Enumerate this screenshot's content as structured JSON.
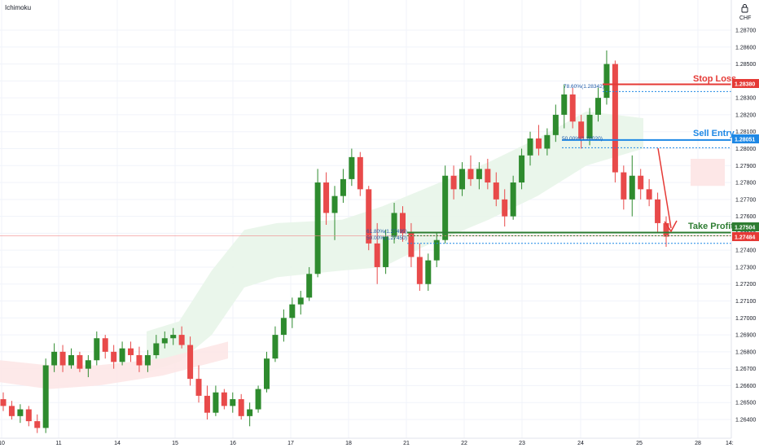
{
  "indicator": "Ichimoku",
  "currency_label": "CHF",
  "lock_icon": "lock-icon",
  "corner_label": "14:",
  "colors": {
    "bull": "#2e8b2e",
    "bear": "#e84a4a",
    "stop": "#e53935",
    "entry": "#1e88e5",
    "profit": "#2e7d32",
    "cloud_bull": "#e8f5e9",
    "cloud_bear": "#fde7e7",
    "price_line": "#f28b8b"
  },
  "annotations": {
    "stop_loss": "Stop Loss",
    "sell_entry": "Sell Entry",
    "take_profit": "Take Profit"
  },
  "levels": {
    "stop_loss": {
      "price": 1.2838,
      "tag": "1.28380"
    },
    "sell_entry": {
      "price": 1.28051,
      "tag": "1.28051"
    },
    "take_profit": {
      "price": 1.27504,
      "tag": "1.27504"
    },
    "current": {
      "price": 1.27484,
      "tag": "1.27484"
    }
  },
  "fib_labels": [
    {
      "text": "78.60%(1.28342)",
      "price": 1.28342
    },
    {
      "text": "50.00%(1.28020)",
      "price": 1.2802
    },
    {
      "text": "61.80%(1.27495)",
      "price": 1.27495
    },
    {
      "text": "50.00%(1.27450)",
      "price": 1.2745
    }
  ],
  "chart_data": {
    "type": "candlestick",
    "title": "",
    "ylim": [
      1.2625,
      1.2875
    ],
    "y_ticks": [
      "1.28700",
      "1.28600",
      "1.28500",
      "1.28400",
      "1.28300",
      "1.28200",
      "1.28100",
      "1.28000",
      "1.27900",
      "1.27800",
      "1.27700",
      "1.27600",
      "1.27500",
      "1.27400",
      "1.27300",
      "1.27200",
      "1.27100",
      "1.27000",
      "1.26900",
      "1.26800",
      "1.26700",
      "1.26600",
      "1.26500",
      "1.26400"
    ],
    "x_ticks": [
      "10",
      "11",
      "14",
      "15",
      "16",
      "17",
      "18",
      "21",
      "22",
      "23",
      "24",
      "25",
      "28"
    ],
    "candles_ohlc": [
      [
        1.2652,
        1.2656,
        1.2645,
        1.2648
      ],
      [
        1.2648,
        1.2651,
        1.264,
        1.2642
      ],
      [
        1.2642,
        1.2649,
        1.2638,
        1.2646
      ],
      [
        1.2646,
        1.2648,
        1.2636,
        1.2639
      ],
      [
        1.2639,
        1.2643,
        1.2632,
        1.2635
      ],
      [
        1.2635,
        1.2676,
        1.2632,
        1.2672
      ],
      [
        1.2672,
        1.2685,
        1.2668,
        1.268
      ],
      [
        1.268,
        1.2684,
        1.2668,
        1.2672
      ],
      [
        1.2672,
        1.2682,
        1.267,
        1.2678
      ],
      [
        1.2678,
        1.268,
        1.2668,
        1.267
      ],
      [
        1.267,
        1.2678,
        1.2665,
        1.2675
      ],
      [
        1.2675,
        1.2692,
        1.2672,
        1.2688
      ],
      [
        1.2688,
        1.269,
        1.2676,
        1.268
      ],
      [
        1.268,
        1.2684,
        1.267,
        1.2674
      ],
      [
        1.2674,
        1.2686,
        1.2672,
        1.2682
      ],
      [
        1.2682,
        1.2686,
        1.2674,
        1.2678
      ],
      [
        1.2678,
        1.2683,
        1.2668,
        1.2672
      ],
      [
        1.2672,
        1.2681,
        1.2668,
        1.2678
      ],
      [
        1.2678,
        1.269,
        1.2676,
        1.2685
      ],
      [
        1.2685,
        1.2692,
        1.2682,
        1.2688
      ],
      [
        1.2688,
        1.2694,
        1.2684,
        1.269
      ],
      [
        1.269,
        1.2695,
        1.2682,
        1.2684
      ],
      [
        1.2684,
        1.2689,
        1.266,
        1.2664
      ],
      [
        1.2664,
        1.2672,
        1.265,
        1.2654
      ],
      [
        1.2654,
        1.266,
        1.264,
        1.2644
      ],
      [
        1.2644,
        1.266,
        1.2642,
        1.2656
      ],
      [
        1.2656,
        1.2658,
        1.2646,
        1.2648
      ],
      [
        1.2648,
        1.2656,
        1.2644,
        1.2652
      ],
      [
        1.2652,
        1.2655,
        1.264,
        1.2642
      ],
      [
        1.2642,
        1.265,
        1.2636,
        1.2646
      ],
      [
        1.2646,
        1.266,
        1.2644,
        1.2658
      ],
      [
        1.2658,
        1.268,
        1.2656,
        1.2676
      ],
      [
        1.2676,
        1.2695,
        1.2674,
        1.269
      ],
      [
        1.269,
        1.2705,
        1.2686,
        1.27
      ],
      [
        1.27,
        1.2712,
        1.2694,
        1.2708
      ],
      [
        1.2708,
        1.2716,
        1.2702,
        1.2712
      ],
      [
        1.2712,
        1.273,
        1.271,
        1.2726
      ],
      [
        1.2726,
        1.2788,
        1.2724,
        1.278
      ],
      [
        1.278,
        1.2786,
        1.2755,
        1.2762
      ],
      [
        1.2762,
        1.2778,
        1.2746,
        1.2772
      ],
      [
        1.2772,
        1.2788,
        1.2768,
        1.2782
      ],
      [
        1.2782,
        1.28,
        1.2778,
        1.2795
      ],
      [
        1.2795,
        1.2798,
        1.2772,
        1.2776
      ],
      [
        1.2776,
        1.2778,
        1.274,
        1.2744
      ],
      [
        1.2744,
        1.2756,
        1.272,
        1.273
      ],
      [
        1.273,
        1.2752,
        1.2726,
        1.2748
      ],
      [
        1.2748,
        1.2768,
        1.2744,
        1.2762
      ],
      [
        1.2762,
        1.2766,
        1.2745,
        1.275
      ],
      [
        1.275,
        1.2756,
        1.273,
        1.2736
      ],
      [
        1.2736,
        1.2744,
        1.2716,
        1.272
      ],
      [
        1.272,
        1.2738,
        1.2716,
        1.2734
      ],
      [
        1.2734,
        1.275,
        1.273,
        1.2746
      ],
      [
        1.2746,
        1.279,
        1.2744,
        1.2784
      ],
      [
        1.2784,
        1.279,
        1.277,
        1.2776
      ],
      [
        1.2776,
        1.2792,
        1.2772,
        1.2788
      ],
      [
        1.2788,
        1.2796,
        1.2778,
        1.2782
      ],
      [
        1.2782,
        1.2792,
        1.2776,
        1.2788
      ],
      [
        1.2788,
        1.2794,
        1.2776,
        1.278
      ],
      [
        1.278,
        1.2786,
        1.2766,
        1.277
      ],
      [
        1.277,
        1.2776,
        1.2754,
        1.276
      ],
      [
        1.276,
        1.2784,
        1.2758,
        1.278
      ],
      [
        1.278,
        1.28,
        1.2776,
        1.2796
      ],
      [
        1.2796,
        1.281,
        1.279,
        1.2806
      ],
      [
        1.2806,
        1.2814,
        1.2796,
        1.28
      ],
      [
        1.28,
        1.2812,
        1.2796,
        1.2808
      ],
      [
        1.2808,
        1.2826,
        1.2804,
        1.282
      ],
      [
        1.282,
        1.2838,
        1.2812,
        1.2832
      ],
      [
        1.2832,
        1.2836,
        1.2812,
        1.2816
      ],
      [
        1.2816,
        1.282,
        1.28,
        1.2806
      ],
      [
        1.2806,
        1.2824,
        1.2802,
        1.282
      ],
      [
        1.282,
        1.2836,
        1.2816,
        1.283
      ],
      [
        1.283,
        1.2858,
        1.2826,
        1.285
      ],
      [
        1.285,
        1.2852,
        1.278,
        1.2786
      ],
      [
        1.2786,
        1.279,
        1.2764,
        1.277
      ],
      [
        1.277,
        1.2796,
        1.276,
        1.2784
      ],
      [
        1.2784,
        1.2788,
        1.277,
        1.2776
      ],
      [
        1.2776,
        1.2782,
        1.2766,
        1.277
      ],
      [
        1.277,
        1.2774,
        1.275,
        1.2756
      ],
      [
        1.2756,
        1.276,
        1.2742,
        1.2748
      ]
    ],
    "cloud_bull_pairs": [
      [
        1.2668,
        1.2692
      ],
      [
        1.2674,
        1.2698
      ],
      [
        1.269,
        1.2728
      ],
      [
        1.2718,
        1.2752
      ],
      [
        1.2724,
        1.2756
      ],
      [
        1.2728,
        1.2758
      ],
      [
        1.273,
        1.2766
      ],
      [
        1.2742,
        1.2776
      ],
      [
        1.2758,
        1.2792
      ],
      [
        1.2772,
        1.2806
      ],
      [
        1.279,
        1.2822
      ],
      [
        1.28,
        1.2818
      ]
    ],
    "cloud_bear_pairs": [
      [
        1.2662,
        1.2675
      ],
      [
        1.2658,
        1.2672
      ],
      [
        1.266,
        1.2672
      ],
      [
        1.2666,
        1.2676
      ],
      [
        1.2676,
        1.2686
      ],
      [
        1.2778,
        1.2794
      ]
    ]
  }
}
